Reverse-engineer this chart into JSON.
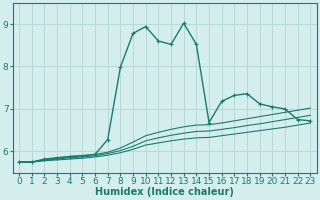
{
  "title": "",
  "xlabel": "Humidex (Indice chaleur)",
  "ylabel": "",
  "xlim": [
    -0.5,
    23.5
  ],
  "ylim": [
    5.5,
    9.5
  ],
  "xticks": [
    0,
    1,
    2,
    3,
    4,
    5,
    6,
    7,
    8,
    9,
    10,
    11,
    12,
    13,
    14,
    15,
    16,
    17,
    18,
    19,
    20,
    21,
    22,
    23
  ],
  "yticks": [
    6,
    7,
    8,
    9
  ],
  "bg_color": "#d4eeed",
  "line_color": "#1a7a6e",
  "grid_color": "#c0dede",
  "lines": [
    {
      "x": [
        0,
        1,
        2,
        3,
        4,
        5,
        6,
        7,
        8,
        9,
        10,
        11,
        12,
        13,
        14,
        15,
        16,
        17,
        18,
        19,
        20,
        21,
        22,
        23
      ],
      "y": [
        5.75,
        5.75,
        5.82,
        5.85,
        5.88,
        5.9,
        5.93,
        6.28,
        7.98,
        8.78,
        8.94,
        8.6,
        8.52,
        9.02,
        8.52,
        6.68,
        7.18,
        7.32,
        7.36,
        7.12,
        7.05,
        7.0,
        6.75,
        6.72
      ],
      "marker": true,
      "lw": 1.0
    },
    {
      "x": [
        0,
        1,
        2,
        3,
        4,
        5,
        6,
        7,
        8,
        9,
        10,
        11,
        12,
        13,
        14,
        15,
        16,
        17,
        18,
        19,
        20,
        21,
        22,
        23
      ],
      "y": [
        5.75,
        5.75,
        5.8,
        5.85,
        5.88,
        5.9,
        5.93,
        5.98,
        6.08,
        6.22,
        6.37,
        6.45,
        6.52,
        6.58,
        6.62,
        6.63,
        6.67,
        6.72,
        6.77,
        6.82,
        6.87,
        6.92,
        6.97,
        7.02
      ],
      "marker": false,
      "lw": 0.8
    },
    {
      "x": [
        0,
        1,
        2,
        3,
        4,
        5,
        6,
        7,
        8,
        9,
        10,
        11,
        12,
        13,
        14,
        15,
        16,
        17,
        18,
        19,
        20,
        21,
        22,
        23
      ],
      "y": [
        5.75,
        5.75,
        5.79,
        5.82,
        5.85,
        5.87,
        5.9,
        5.95,
        6.02,
        6.12,
        6.25,
        6.32,
        6.38,
        6.43,
        6.47,
        6.48,
        6.52,
        6.56,
        6.61,
        6.65,
        6.7,
        6.75,
        6.8,
        6.85
      ],
      "marker": false,
      "lw": 0.8
    },
    {
      "x": [
        0,
        1,
        2,
        3,
        4,
        5,
        6,
        7,
        8,
        9,
        10,
        11,
        12,
        13,
        14,
        15,
        16,
        17,
        18,
        19,
        20,
        21,
        22,
        23
      ],
      "y": [
        5.75,
        5.75,
        5.78,
        5.8,
        5.82,
        5.84,
        5.87,
        5.91,
        5.97,
        6.05,
        6.15,
        6.2,
        6.25,
        6.29,
        6.32,
        6.33,
        6.37,
        6.41,
        6.45,
        6.49,
        6.53,
        6.57,
        6.62,
        6.67
      ],
      "marker": false,
      "lw": 0.8
    }
  ],
  "font_size": 7,
  "tick_font_size": 6.5
}
